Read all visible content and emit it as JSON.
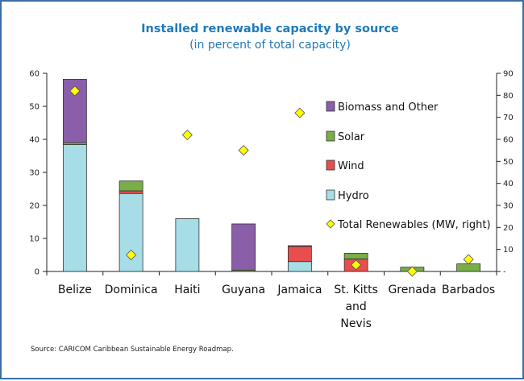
{
  "chart_data": {
    "type": "bar",
    "title": "Installed renewable capacity by source",
    "subtitle": "(in percent of total capacity)",
    "categories": [
      "Belize",
      "Dominica",
      "Haiti",
      "Guyana",
      "Jamaica",
      "St. Kitts and Nevis",
      "Grenada",
      "Barbados"
    ],
    "category_lines": [
      [
        "Belize"
      ],
      [
        "Dominica"
      ],
      [
        "Haiti"
      ],
      [
        "Guyana"
      ],
      [
        "Jamaica"
      ],
      [
        "St. Kitts",
        "and",
        "Nevis"
      ],
      [
        "Grenada"
      ],
      [
        "Barbados"
      ]
    ],
    "stacked": true,
    "series": [
      {
        "name": "Hydro",
        "color": "#a6dde6",
        "values": [
          38.4,
          23.6,
          16.0,
          0.0,
          3.0,
          0.0,
          0.0,
          0.0
        ]
      },
      {
        "name": "Wind",
        "color": "#e84e4e",
        "values": [
          0.0,
          0.8,
          0.0,
          0.0,
          4.6,
          3.8,
          0.0,
          0.0
        ]
      },
      {
        "name": "Solar",
        "color": "#78ad48",
        "values": [
          0.6,
          3.0,
          0.0,
          0.4,
          0.2,
          1.7,
          1.3,
          2.3
        ]
      },
      {
        "name": "Biomass and Other",
        "color": "#8a5ea8",
        "values": [
          19.2,
          0.0,
          0.0,
          14.0,
          0.0,
          0.0,
          0.0,
          0.0
        ]
      }
    ],
    "secondary_series": {
      "name": "Total Renewables (MW, right)",
      "color": "#ffff00",
      "marker": "diamond",
      "values": [
        82,
        7.5,
        62,
        55,
        72,
        3,
        0,
        5.5
      ]
    },
    "y_left": {
      "min": 0,
      "max": 60,
      "ticks": [
        0,
        10,
        20,
        30,
        40,
        50,
        60
      ]
    },
    "y_right": {
      "min": 0,
      "max": 90,
      "ticks": [
        10,
        20,
        30,
        40,
        50,
        60,
        70,
        80,
        90
      ],
      "zero_label": "-"
    },
    "legend_order": [
      "Biomass and Other",
      "Solar",
      "Wind",
      "Hydro",
      "Total Renewables (MW, right)"
    ],
    "legend_position": "right",
    "grid": false
  },
  "source": "Source: CARICOM Caribbean Sustainable Energy Roadmap."
}
